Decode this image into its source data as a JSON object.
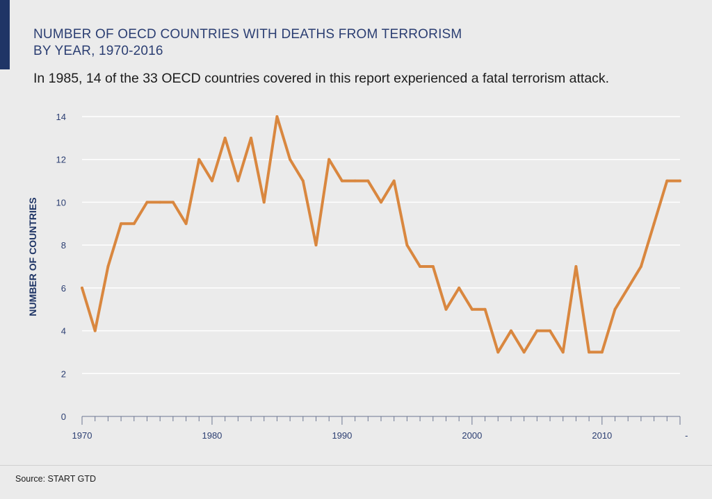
{
  "header": {
    "title_line1": "NUMBER OF OECD COUNTRIES WITH DEATHS FROM TERRORISM",
    "title_line2": "BY YEAR, 1970-2016",
    "subtitle": "In 1985, 14 of the 33 OECD countries covered in this report experienced a fatal terrorism attack."
  },
  "footer": {
    "source": "Source: START GTD"
  },
  "colors": {
    "line": "#d9873f",
    "title": "#2b3e72",
    "axis_label": "#1f3566",
    "grid": "#ffffff",
    "background": "#ebebeb"
  },
  "chart_data": {
    "type": "line",
    "ylabel": "NUMBER OF COUNTRIES",
    "xlabel": "",
    "ylim": [
      0,
      14
    ],
    "yticks": [
      0,
      2,
      4,
      6,
      8,
      10,
      12,
      14
    ],
    "xlim": [
      1970,
      2016
    ],
    "xtick_labels": [
      "1970",
      "1980",
      "1990",
      "2000",
      "2010",
      "-"
    ],
    "grid": true,
    "series": [
      {
        "x": [
          1970,
          1971,
          1972,
          1973,
          1974,
          1975,
          1976,
          1977,
          1978,
          1979,
          1980,
          1981,
          1982,
          1983,
          1984,
          1985,
          1986,
          1987,
          1988,
          1989,
          1990,
          1991,
          1992,
          1993,
          1994,
          1995,
          1996,
          1997,
          1998,
          1999,
          2000,
          2001,
          2002,
          2003,
          2004,
          2005,
          2006,
          2007,
          2008,
          2009,
          2010,
          2011,
          2012,
          2013,
          2014,
          2015,
          2016
        ],
        "values": [
          6,
          4,
          7,
          9,
          9,
          10,
          10,
          10,
          9,
          12,
          11,
          13,
          11,
          13,
          10,
          14,
          12,
          11,
          8,
          12,
          11,
          11,
          11,
          10,
          11,
          8,
          7,
          7,
          5,
          6,
          5,
          5,
          3,
          4,
          3,
          4,
          4,
          3,
          7,
          3,
          3,
          5,
          6,
          7,
          9,
          11,
          11
        ]
      }
    ]
  }
}
